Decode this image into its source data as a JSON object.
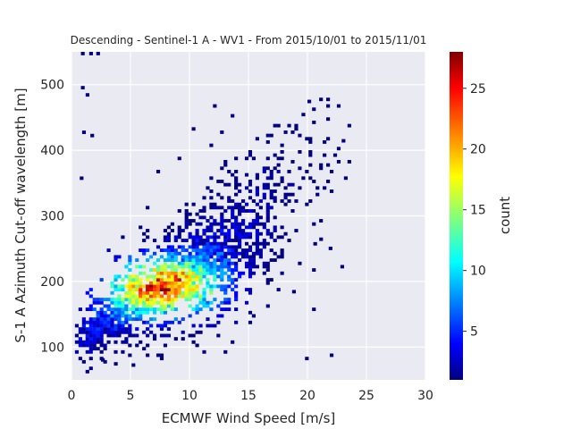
{
  "chart_data": {
    "type": "heatmap",
    "title": "Descending - Sentinel-1 A - WV1 - From 2015/10/01 to 2015/11/01",
    "xlabel": "ECMWF Wind Speed [m/s]",
    "ylabel": "S-1 A Azimuth Cut-off wavelength [m]",
    "xlim": [
      0,
      30
    ],
    "ylim": [
      50,
      550
    ],
    "xticks": [
      0,
      5,
      10,
      15,
      20,
      25,
      30
    ],
    "yticks": [
      100,
      200,
      300,
      400,
      500
    ],
    "grid": true,
    "colormap": "jet",
    "colorbar": {
      "label": "count",
      "range": [
        1,
        28
      ],
      "ticks": [
        5,
        10,
        15,
        20,
        25
      ]
    },
    "density_model": {
      "description": "2D histogram of wind speed vs azimuth cut-off wavelength; density peaks near 7.5 m/s, 190 m",
      "bin_width_x": 0.3,
      "bin_height_y": 5,
      "peak": {
        "x": 7.5,
        "y": 190,
        "count": 28
      },
      "ridge": [
        {
          "x": 1,
          "y": 120
        },
        {
          "x": 3,
          "y": 140
        },
        {
          "x": 5,
          "y": 165
        },
        {
          "x": 7.5,
          "y": 190
        },
        {
          "x": 10,
          "y": 215
        },
        {
          "x": 13,
          "y": 245
        },
        {
          "x": 16,
          "y": 290
        },
        {
          "x": 19,
          "y": 340
        }
      ]
    },
    "outliers": [
      {
        "x": 0.8,
        "y": 545
      },
      {
        "x": 1.5,
        "y": 545
      },
      {
        "x": 2.1,
        "y": 545
      },
      {
        "x": 0.8,
        "y": 493
      },
      {
        "x": 1.2,
        "y": 482
      },
      {
        "x": 0.9,
        "y": 425
      },
      {
        "x": 1.6,
        "y": 420
      },
      {
        "x": 22.9,
        "y": 412
      },
      {
        "x": 20.0,
        "y": 472
      },
      {
        "x": 19.5,
        "y": 452
      },
      {
        "x": 21.0,
        "y": 262
      },
      {
        "x": 21.8,
        "y": 248
      },
      {
        "x": 20.5,
        "y": 255
      },
      {
        "x": 18.7,
        "y": 182
      },
      {
        "x": 0.7,
        "y": 355
      },
      {
        "x": 3.6,
        "y": 72
      },
      {
        "x": 2.5,
        "y": 78
      }
    ]
  }
}
